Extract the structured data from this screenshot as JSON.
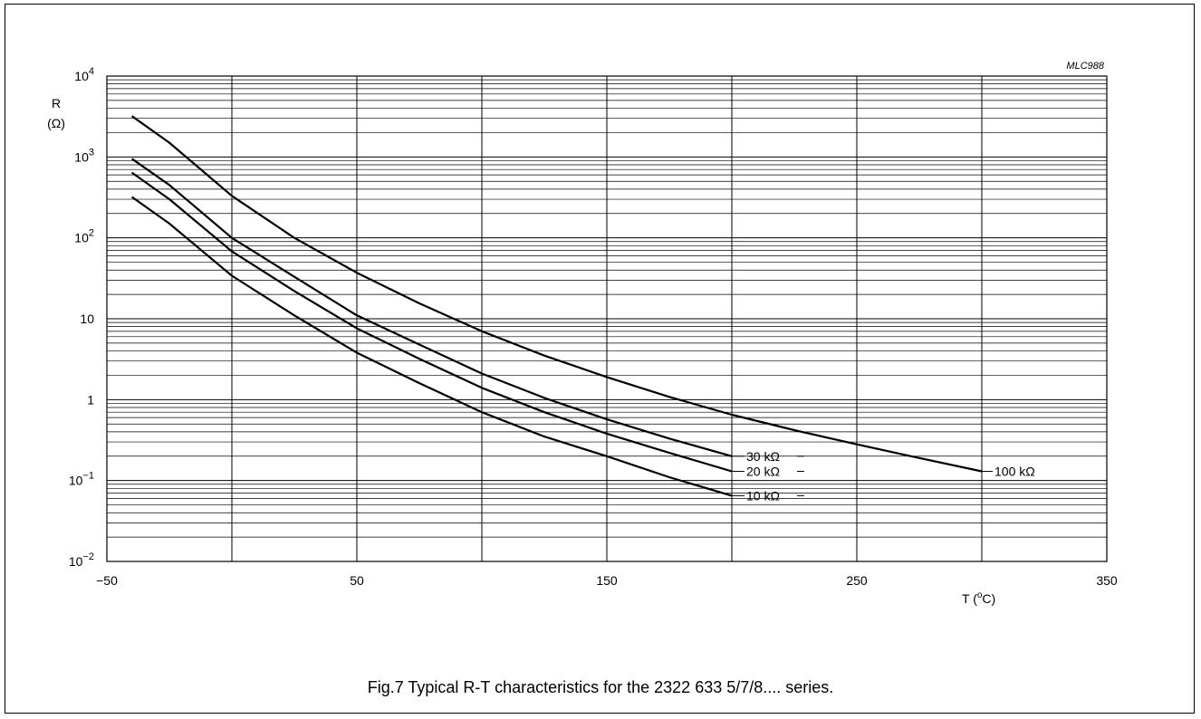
{
  "figure_code": "MLC988",
  "caption": "Fig.7  Typical R-T characteristics for the 2322 633 5/7/8.... series.",
  "chart_data": {
    "type": "line",
    "title": "",
    "xlabel": "T (°C)",
    "ylabel": "R (Ω)",
    "xlim": [
      -50,
      350
    ],
    "ylim": [
      0.01,
      10000
    ],
    "yscale": "log",
    "grid": true,
    "x_ticks": [
      {
        "value": -50,
        "label": "−50"
      },
      {
        "value": 50,
        "label": "50"
      },
      {
        "value": 150,
        "label": "150"
      },
      {
        "value": 250,
        "label": "250"
      },
      {
        "value": 350,
        "label": "350"
      }
    ],
    "y_ticks": [
      {
        "value": 10000,
        "base": "10",
        "exp": "4"
      },
      {
        "value": 1000,
        "base": "10",
        "exp": "3"
      },
      {
        "value": 100,
        "base": "10",
        "exp": "2"
      },
      {
        "value": 10,
        "base": "10",
        "exp": ""
      },
      {
        "value": 1,
        "base": "1",
        "exp": ""
      },
      {
        "value": 0.1,
        "base": "10",
        "exp": "−1"
      },
      {
        "value": 0.01,
        "base": "10",
        "exp": "−2"
      }
    ],
    "series": [
      {
        "name": "10 kΩ",
        "x": [
          -40,
          -25,
          0,
          25,
          50,
          75,
          100,
          125,
          150,
          175,
          200
        ],
        "y": [
          320,
          150,
          34,
          11,
          3.8,
          1.6,
          0.7,
          0.35,
          0.2,
          0.11,
          0.065
        ]
      },
      {
        "name": "20 kΩ",
        "x": [
          -40,
          -25,
          0,
          25,
          50,
          75,
          100,
          125,
          150,
          175,
          200
        ],
        "y": [
          640,
          300,
          68,
          22,
          7.6,
          3.2,
          1.4,
          0.7,
          0.38,
          0.22,
          0.13
        ]
      },
      {
        "name": "30 kΩ",
        "x": [
          -40,
          -25,
          0,
          25,
          50,
          75,
          100,
          125,
          150,
          175,
          200
        ],
        "y": [
          950,
          450,
          100,
          33,
          11,
          4.8,
          2.1,
          1.05,
          0.57,
          0.33,
          0.2
        ]
      },
      {
        "name": "100 kΩ",
        "x": [
          -40,
          -25,
          0,
          25,
          50,
          75,
          100,
          125,
          150,
          175,
          200,
          225,
          250,
          275,
          300
        ],
        "y": [
          3200,
          1500,
          330,
          100,
          37,
          15.5,
          7,
          3.5,
          1.9,
          1.08,
          0.65,
          0.42,
          0.28,
          0.19,
          0.13
        ]
      }
    ]
  }
}
